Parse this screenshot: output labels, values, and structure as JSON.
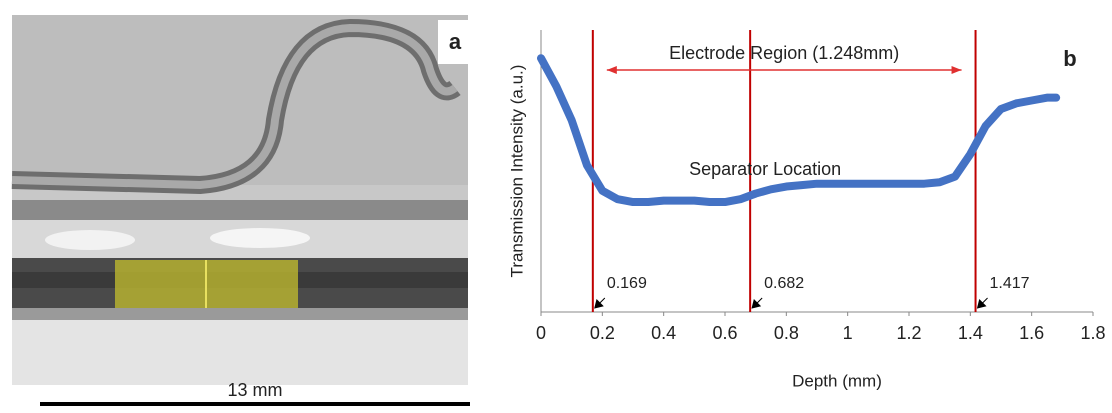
{
  "panel_a": {
    "label": "a",
    "scale_bar": "13 mm"
  },
  "chart_data": {
    "type": "line",
    "label": "b",
    "xlabel": "Depth (mm)",
    "ylabel": "Transmission Intensity (a.u.)",
    "annotation_region": "Electrode Region (1.248mm)",
    "annotation_separator": "Separator Location",
    "x": [
      0,
      0.05,
      0.1,
      0.15,
      0.2,
      0.25,
      0.3,
      0.35,
      0.4,
      0.45,
      0.5,
      0.55,
      0.6,
      0.65,
      0.7,
      0.75,
      0.8,
      0.85,
      0.9,
      0.95,
      1.0,
      1.05,
      1.1,
      1.15,
      1.2,
      1.25,
      1.3,
      1.35,
      1.4,
      1.45,
      1.5,
      1.55,
      1.6,
      1.65,
      1.68
    ],
    "values": [
      90,
      80,
      68,
      52,
      43,
      40,
      39,
      39,
      39.5,
      39.5,
      39.5,
      39,
      39,
      40,
      42,
      43.5,
      44.5,
      45,
      45.5,
      45.5,
      45.5,
      45.5,
      45.5,
      45.5,
      45.5,
      45.5,
      46,
      48,
      56,
      66,
      72,
      74,
      75,
      76,
      76
    ],
    "color": "#4472c4",
    "vlines": [
      0.169,
      0.682,
      1.417
    ],
    "vline_color": "#c00000",
    "xlim": [
      0,
      1.8
    ],
    "xticks": [
      0,
      0.2,
      0.4,
      0.6,
      0.8,
      1,
      1.2,
      1.4,
      1.6,
      1.8
    ],
    "ylim": [
      0,
      100
    ]
  }
}
